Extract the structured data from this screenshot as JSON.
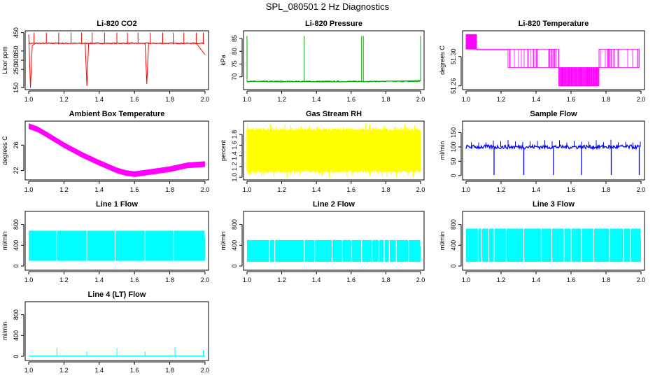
{
  "figure": {
    "title": "SPL_080501  2 Hz Diagnostics",
    "x_ticks": [
      "1.0",
      "1.2",
      "1.4",
      "1.6",
      "1.8",
      "2.0"
    ]
  },
  "chart_data": [
    {
      "type": "line",
      "title": "Li-820 CO2",
      "ylabel": "Licor ppm",
      "color": "#ff0000",
      "xlim": [
        0.98,
        2.02
      ],
      "ylim": [
        140,
        460
      ],
      "yticks": [
        "150",
        "250",
        "300",
        "350",
        "450"
      ],
      "ytick_values": [
        150,
        250,
        300,
        350,
        450
      ],
      "xticks": [
        1.0,
        1.2,
        1.4,
        1.6,
        1.8,
        2.0
      ],
      "series": [
        {
          "name": "co2",
          "x": [
            1.0,
            1.01,
            1.02,
            1.04,
            1.1,
            1.16,
            1.2,
            1.25,
            1.3,
            1.32,
            1.33,
            1.34,
            1.4,
            1.5,
            1.55,
            1.6,
            1.66,
            1.67,
            1.68,
            1.75,
            1.8,
            1.85,
            1.9,
            1.95,
            2.0
          ],
          "y": [
            440,
            150,
            380,
            392,
            392,
            394,
            392,
            392,
            392,
            393,
            160,
            392,
            392,
            393,
            392,
            392,
            393,
            170,
            392,
            392,
            393,
            392,
            392,
            393,
            330
          ],
          "baseline": 392,
          "spikes_up": [
            1.03,
            1.1,
            1.17,
            1.24,
            1.3,
            1.36,
            1.43,
            1.5,
            1.56,
            1.62,
            1.69,
            1.76,
            1.82,
            1.88,
            1.95,
            1.99
          ],
          "spike_up_to": 450
        }
      ]
    },
    {
      "type": "line",
      "title": "Li-820 Pressure",
      "ylabel": "kPa",
      "color": "#00aa00",
      "xlim": [
        0.98,
        2.02
      ],
      "ylim": [
        65,
        88
      ],
      "yticks": [
        "70",
        "75",
        "80",
        "85"
      ],
      "ytick_values": [
        70,
        75,
        80,
        85
      ],
      "xticks": [
        1.0,
        1.2,
        1.4,
        1.6,
        1.8,
        2.0
      ],
      "series": [
        {
          "name": "pressure",
          "x": [
            1.0,
            1.1,
            1.2,
            1.3,
            1.4,
            1.5,
            1.6,
            1.7,
            1.8,
            1.9,
            2.0
          ],
          "y": [
            68.2,
            68.1,
            68.0,
            68.1,
            68.0,
            68.0,
            68.1,
            68.2,
            68.3,
            68.4,
            68.6
          ],
          "baseline": 68.2,
          "spikes_up": [
            1.0,
            1.33,
            1.66,
            1.67,
            2.0
          ],
          "spike_up_to": 86
        }
      ]
    },
    {
      "type": "line",
      "title": "Li-820 Temperature",
      "ylabel": "degrees C",
      "color": "#ff00ff",
      "xlim": [
        0.98,
        2.02
      ],
      "ylim": [
        51.255,
        51.335
      ],
      "yticks": [
        "51.26",
        "51.30"
      ],
      "ytick_values": [
        51.26,
        51.3
      ],
      "xticks": [
        1.0,
        1.2,
        1.4,
        1.6,
        1.8,
        2.0
      ],
      "series": [
        {
          "name": "temp",
          "levels": [
            51.33,
            51.31,
            51.285,
            51.26
          ],
          "segments": [
            [
              1.0,
              1.06,
              51.33,
              51.31
            ],
            [
              1.06,
              1.24,
              51.31,
              51.31
            ],
            [
              1.24,
              1.53,
              51.31,
              51.285
            ],
            [
              1.53,
              1.76,
              51.285,
              51.26
            ],
            [
              1.76,
              1.99,
              51.285,
              51.31
            ]
          ]
        }
      ]
    },
    {
      "type": "line",
      "title": "Ambient Box Temperature",
      "ylabel": "degrees C",
      "color": "#ff00ff",
      "xlim": [
        0.98,
        2.02
      ],
      "ylim": [
        20.5,
        29.8
      ],
      "yticks": [
        "22",
        "26"
      ],
      "ytick_values": [
        22,
        26
      ],
      "xticks": [
        1.0,
        1.2,
        1.4,
        1.6,
        1.8,
        2.0
      ],
      "series": [
        {
          "name": "box_temp",
          "x": [
            1.0,
            1.05,
            1.1,
            1.2,
            1.3,
            1.4,
            1.5,
            1.55,
            1.6,
            1.65,
            1.7,
            1.8,
            1.9,
            2.0
          ],
          "y": [
            29.0,
            28.5,
            27.7,
            26.0,
            24.5,
            23.2,
            22.0,
            21.6,
            21.4,
            21.6,
            21.8,
            22.2,
            22.8,
            23.0
          ],
          "band": 0.45
        }
      ]
    },
    {
      "type": "area",
      "title": "Gas Stream RH",
      "ylabel": "percent",
      "color": "#ffff00",
      "xlim": [
        0.98,
        2.02
      ],
      "ylim": [
        0.95,
        2.05
      ],
      "yticks": [
        "1.0",
        "1.2",
        "1.4",
        "1.6",
        "1.8"
      ],
      "ytick_values": [
        1.0,
        1.2,
        1.4,
        1.6,
        1.8
      ],
      "xticks": [
        1.0,
        1.2,
        1.4,
        1.6,
        1.8,
        2.0
      ],
      "series": [
        {
          "name": "rh",
          "upper": 1.92,
          "lower": 1.08,
          "spike_hi": 2.0,
          "spike_lo": 1.0
        }
      ]
    },
    {
      "type": "line",
      "title": "Sample Flow",
      "ylabel": "ml/min",
      "color": "#0000ff",
      "xlim": [
        0.98,
        2.02
      ],
      "ylim": [
        -15,
        190
      ],
      "yticks": [
        "0",
        "50",
        "100",
        "150"
      ],
      "ytick_values": [
        0,
        50,
        100,
        150
      ],
      "xticks": [
        1.0,
        1.2,
        1.4,
        1.6,
        1.8,
        2.0
      ],
      "series": [
        {
          "name": "sample_flow",
          "baseline": 100,
          "dips": [
            1.16,
            1.33,
            1.5,
            1.66,
            1.83,
            1.99
          ],
          "dip_to": 2,
          "spike_up_to": 125
        }
      ]
    },
    {
      "type": "area",
      "title": "Line 1 Flow",
      "ylabel": "ml/min",
      "color": "#00ffff",
      "xlim": [
        0.98,
        2.02
      ],
      "ylim": [
        -80,
        1050
      ],
      "yticks": [
        "0",
        "400",
        "800"
      ],
      "ytick_values": [
        0,
        400,
        800
      ],
      "xticks": [
        1.0,
        1.2,
        1.4,
        1.6,
        1.8,
        2.0
      ],
      "series": [
        {
          "name": "line1",
          "upper": 680,
          "lower": 100,
          "gaps": [
            1.16,
            1.33,
            1.49,
            1.66,
            1.82
          ],
          "end_value": 550
        }
      ]
    },
    {
      "type": "area",
      "title": "Line 2 Flow",
      "ylabel": "ml/min",
      "color": "#00ffff",
      "xlim": [
        0.98,
        2.02
      ],
      "ylim": [
        -80,
        1050
      ],
      "yticks": [
        "0",
        "400",
        "800"
      ],
      "ytick_values": [
        0,
        400,
        800
      ],
      "xticks": [
        1.0,
        1.2,
        1.4,
        1.6,
        1.8,
        2.0
      ],
      "series": [
        {
          "name": "line2",
          "upper": 500,
          "lower": 80,
          "gaps": [
            1.13,
            1.16,
            1.33,
            1.39,
            1.49,
            1.55,
            1.6,
            1.66,
            1.72,
            1.76,
            1.79,
            1.82,
            1.86,
            1.93
          ],
          "end_value": 380
        }
      ]
    },
    {
      "type": "area",
      "title": "Line 3 Flow",
      "ylabel": "ml/min",
      "color": "#00ffff",
      "xlim": [
        0.98,
        2.02
      ],
      "ylim": [
        -80,
        1050
      ],
      "yticks": [
        "0",
        "400",
        "800"
      ],
      "ytick_values": [
        0,
        400,
        800
      ],
      "xticks": [
        1.0,
        1.2,
        1.4,
        1.6,
        1.8,
        2.0
      ],
      "series": [
        {
          "name": "line3",
          "upper": 720,
          "lower": 80,
          "gaps": [
            1.07,
            1.09,
            1.13,
            1.16,
            1.23,
            1.33,
            1.43,
            1.49,
            1.56,
            1.6,
            1.66,
            1.73,
            1.82,
            1.9,
            1.94
          ],
          "end_value": 540
        }
      ]
    },
    {
      "type": "line",
      "title": "Line 4 (LT) Flow",
      "ylabel": "ml/min",
      "color": "#00ffff",
      "xlim": [
        0.98,
        2.02
      ],
      "ylim": [
        -80,
        1050
      ],
      "yticks": [
        "0",
        "400",
        "800"
      ],
      "ytick_values": [
        0,
        400,
        800
      ],
      "xticks": [
        1.0,
        1.2,
        1.4,
        1.6,
        1.8,
        2.0
      ],
      "series": [
        {
          "name": "line4",
          "baseline": 5,
          "spikes_up": [
            1.16,
            1.33,
            1.5,
            1.66,
            1.83,
            1.99
          ],
          "spike_heights": [
            160,
            90,
            160,
            90,
            170,
            120
          ]
        }
      ]
    }
  ]
}
